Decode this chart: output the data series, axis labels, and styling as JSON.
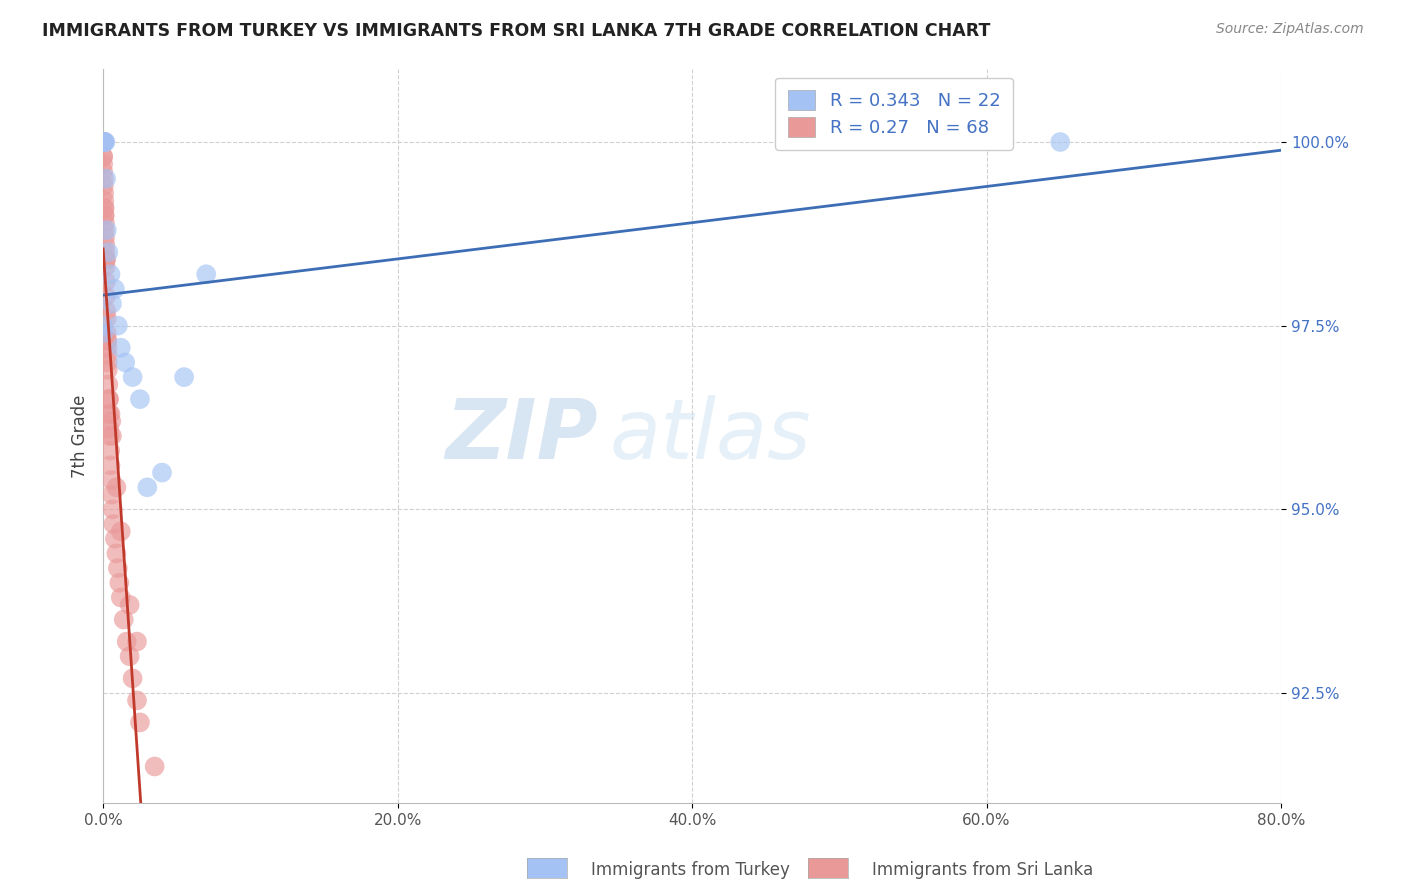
{
  "title": "IMMIGRANTS FROM TURKEY VS IMMIGRANTS FROM SRI LANKA 7TH GRADE CORRELATION CHART",
  "source": "Source: ZipAtlas.com",
  "ylabel": "7th Grade",
  "xlabel_turkey": "Immigrants from Turkey",
  "xlabel_srilanka": "Immigrants from Sri Lanka",
  "xlim": [
    0.0,
    80.0
  ],
  "ylim": [
    91.0,
    101.0
  ],
  "xticks": [
    0.0,
    20.0,
    40.0,
    60.0,
    80.0
  ],
  "yticks": [
    92.5,
    95.0,
    97.5,
    100.0
  ],
  "R_turkey": 0.343,
  "N_turkey": 22,
  "R_srilanka": 0.27,
  "N_srilanka": 68,
  "color_turkey": "#a4c2f4",
  "color_srilanka": "#ea9999",
  "trendline_turkey": "#3d6eb5",
  "trendline_srilanka": "#c0392b",
  "watermark_zip": "ZIP",
  "watermark_atlas": "atlas",
  "turkey_x": [
    0.05,
    0.08,
    0.12,
    0.15,
    0.2,
    0.25,
    0.35,
    0.5,
    0.6,
    0.8,
    1.0,
    1.2,
    1.5,
    2.0,
    2.5,
    3.0,
    4.0,
    5.5,
    7.0,
    65.0,
    0.0,
    0.0
  ],
  "turkey_y": [
    100.0,
    100.0,
    100.0,
    100.0,
    99.5,
    98.8,
    98.5,
    98.2,
    97.8,
    98.0,
    97.5,
    97.2,
    97.0,
    96.8,
    96.5,
    95.3,
    95.5,
    96.8,
    98.2,
    100.0,
    97.5,
    97.4
  ],
  "srilanka_x": [
    0.0,
    0.0,
    0.0,
    0.0,
    0.0,
    0.0,
    0.0,
    0.0,
    0.0,
    0.0,
    0.05,
    0.05,
    0.07,
    0.08,
    0.1,
    0.1,
    0.12,
    0.13,
    0.15,
    0.15,
    0.17,
    0.18,
    0.2,
    0.22,
    0.25,
    0.25,
    0.27,
    0.3,
    0.3,
    0.32,
    0.35,
    0.38,
    0.4,
    0.42,
    0.45,
    0.48,
    0.5,
    0.55,
    0.6,
    0.65,
    0.7,
    0.8,
    0.9,
    1.0,
    1.1,
    1.2,
    1.4,
    1.6,
    1.8,
    2.0,
    2.3,
    2.5,
    0.08,
    0.12,
    0.2,
    0.3,
    0.4,
    0.5,
    0.6,
    0.9,
    1.2,
    1.8,
    2.3,
    0.1,
    0.18,
    3.5,
    0.55,
    0.28
  ],
  "srilanka_y": [
    100.0,
    100.0,
    100.0,
    100.0,
    100.0,
    100.0,
    99.8,
    99.8,
    99.7,
    99.6,
    99.5,
    99.4,
    99.3,
    99.2,
    99.1,
    99.0,
    98.9,
    98.7,
    98.6,
    98.5,
    98.3,
    98.1,
    97.9,
    97.7,
    97.6,
    97.4,
    97.3,
    97.1,
    97.0,
    96.9,
    96.7,
    96.5,
    96.3,
    96.1,
    96.0,
    95.8,
    95.6,
    95.4,
    95.2,
    95.0,
    94.8,
    94.6,
    94.4,
    94.2,
    94.0,
    93.8,
    93.5,
    93.2,
    93.0,
    92.7,
    92.4,
    92.1,
    99.1,
    98.8,
    98.4,
    97.2,
    96.5,
    96.3,
    96.0,
    95.3,
    94.7,
    93.7,
    93.2,
    99.0,
    98.4,
    91.5,
    96.2,
    97.3
  ]
}
